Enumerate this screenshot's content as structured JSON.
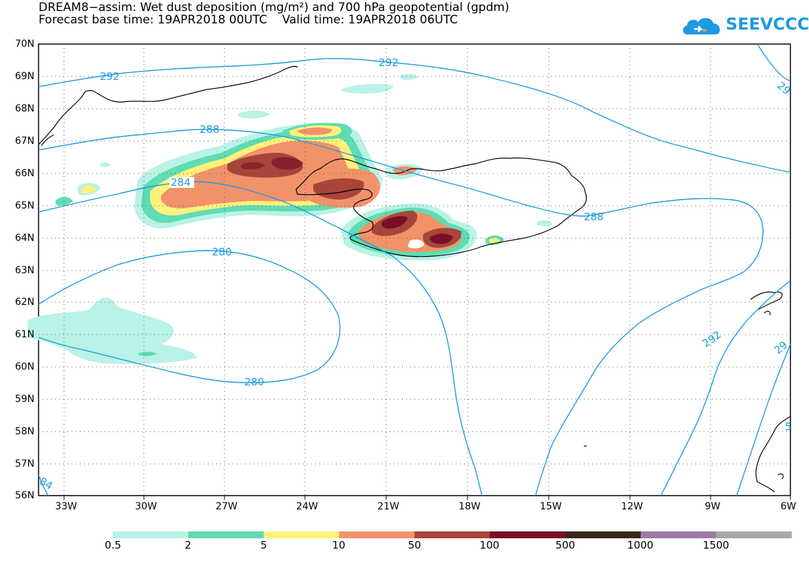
{
  "title": {
    "line1": "DREAM8−assim: Wet dust deposition (mg/m²) and 700 hPa geopotential (gpdm)",
    "line2": "Forecast base time: 19APR2018 00UTC    Valid time: 19APR2018 06UTC"
  },
  "logo": {
    "text": "SEEVCCC",
    "color": "#1e9ae0",
    "icon": "cloud-icon"
  },
  "axes": {
    "lat_labels": [
      "70N",
      "69N",
      "68N",
      "67N",
      "66N",
      "65N",
      "64N",
      "63N",
      "62N",
      "61N",
      "60N",
      "59N",
      "58N",
      "57N",
      "56N"
    ],
    "lon_labels": [
      "33W",
      "30W",
      "27W",
      "24W",
      "21W",
      "18W",
      "15W",
      "12W",
      "9W",
      "6W"
    ]
  },
  "contours": {
    "color": "#1e9ae0",
    "labels": [
      "292",
      "292",
      "29",
      "288",
      "288",
      "284",
      "280",
      "280",
      "292",
      "29",
      "84",
      "5"
    ]
  },
  "colorbar": {
    "labels": [
      "0.5",
      "2",
      "5",
      "10",
      "50",
      "100",
      "500",
      "1000",
      "1500"
    ],
    "colors": [
      "#b9f2e6",
      "#5fdcb4",
      "#fff27a",
      "#f2926a",
      "#a8453a",
      "#7a0e28",
      "#3b2418",
      "#9e7aa8",
      "#a8a8a8"
    ]
  }
}
